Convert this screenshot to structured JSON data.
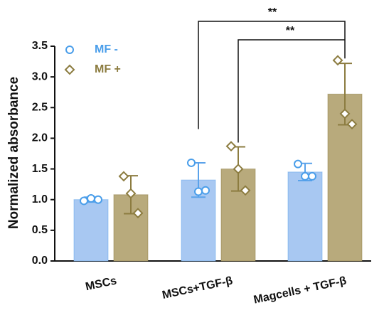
{
  "chart_data": {
    "type": "bar",
    "y_label": "Normalized absorbance",
    "categories": [
      "MSCs",
      "MSCs+TGF-β",
      "Magcells + TGF-β"
    ],
    "series": [
      {
        "name": "MF -",
        "color": "#a8c8f2",
        "edge": "#5aa2ea",
        "values": [
          1.0,
          1.32,
          1.45
        ],
        "errors": [
          0.04,
          0.28,
          0.14
        ],
        "points": [
          [
            0.98,
            1.02,
            1.0
          ],
          [
            1.6,
            1.13,
            1.15
          ],
          [
            1.58,
            1.38,
            1.38
          ]
        ]
      },
      {
        "name": "MF +",
        "color": "#b8aa7c",
        "edge": "#8c7c40",
        "values": [
          1.08,
          1.5,
          2.72
        ],
        "errors": [
          0.31,
          0.36,
          0.5
        ],
        "points": [
          [
            1.38,
            1.1,
            0.78
          ],
          [
            1.87,
            1.5,
            1.15
          ],
          [
            3.27,
            2.4,
            2.23
          ]
        ]
      }
    ],
    "annotations": [
      "**",
      "**"
    ],
    "ylim": [
      0,
      3.5
    ],
    "yticks": [
      {
        "value": 0,
        "label": "0.0"
      },
      0.5,
      {
        "value": 1,
        "label": "1.0"
      },
      1.5,
      {
        "value": 2,
        "label": "2.0"
      },
      2.5,
      {
        "value": 3,
        "label": "3.0"
      },
      3.5
    ],
    "legend": "upper left"
  }
}
